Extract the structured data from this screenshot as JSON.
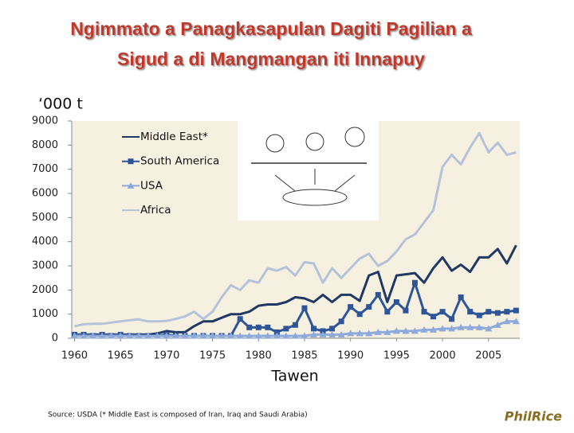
{
  "chart_data": {
    "type": "line",
    "title": [
      "Ngimmato a Panagkasapulan Dagiti Pagilian a",
      "Sigud a di Mangmangan iti Innapuy"
    ],
    "y_label": "‘000 t",
    "x_label": "Tawen",
    "source": "Source: USDA (* Middle East is composed of Iran, Iraq and Saudi Arabia)",
    "logo": "PhilRice",
    "x": [
      1960,
      1961,
      1962,
      1963,
      1964,
      1965,
      1966,
      1967,
      1968,
      1969,
      1970,
      1971,
      1972,
      1973,
      1974,
      1975,
      1976,
      1977,
      1978,
      1979,
      1980,
      1981,
      1982,
      1983,
      1984,
      1985,
      1986,
      1987,
      1988,
      1989,
      1990,
      1991,
      1992,
      1993,
      1994,
      1995,
      1996,
      1997,
      1998,
      1999,
      2000,
      2001,
      2002,
      2003,
      2004,
      2005,
      2006,
      2007,
      2008
    ],
    "xlim": [
      1959.7,
      2008.4
    ],
    "xticks": [
      1960,
      1965,
      1970,
      1975,
      1980,
      1985,
      1990,
      1995,
      2000,
      2005
    ],
    "ylim": [
      0,
      9000
    ],
    "yticks": [
      0,
      1000,
      2000,
      3000,
      4000,
      5000,
      6000,
      7000,
      8000,
      9000
    ],
    "grid": false,
    "series": [
      {
        "name": "Middle East*",
        "color": "#1f3864",
        "marker": "none",
        "values": [
          150,
          150,
          150,
          150,
          150,
          150,
          150,
          150,
          150,
          200,
          300,
          250,
          250,
          500,
          700,
          700,
          850,
          1000,
          1000,
          1100,
          1350,
          1400,
          1400,
          1500,
          1700,
          1650,
          1500,
          1800,
          1500,
          1800,
          1800,
          1550,
          2600,
          2750,
          1500,
          2600,
          2650,
          2700,
          2300,
          2900,
          3350,
          2800,
          3050,
          2750,
          3350,
          3350,
          3700,
          3100,
          3850
        ]
      },
      {
        "name": "South America",
        "color": "#2e5597",
        "marker": "square",
        "values": [
          150,
          150,
          100,
          150,
          100,
          150,
          100,
          100,
          100,
          100,
          150,
          100,
          100,
          100,
          100,
          100,
          100,
          100,
          800,
          450,
          450,
          450,
          250,
          400,
          550,
          1250,
          400,
          300,
          400,
          700,
          1300,
          1000,
          1300,
          1800,
          1100,
          1500,
          1150,
          2300,
          1100,
          900,
          1100,
          800,
          1700,
          1100,
          950,
          1100,
          1050,
          1100,
          1150
        ]
      },
      {
        "name": "USA",
        "color": "#8eaadb",
        "marker": "triangle",
        "values": [
          100,
          100,
          100,
          100,
          100,
          100,
          100,
          100,
          100,
          100,
          100,
          100,
          100,
          100,
          100,
          100,
          100,
          100,
          100,
          100,
          100,
          100,
          100,
          100,
          100,
          100,
          150,
          150,
          150,
          150,
          200,
          200,
          200,
          250,
          250,
          300,
          300,
          300,
          350,
          350,
          400,
          400,
          450,
          450,
          450,
          400,
          550,
          700,
          700
        ]
      },
      {
        "name": "Africa",
        "color": "#b4c3d9",
        "marker": "none",
        "values": [
          500,
          580,
          600,
          600,
          650,
          700,
          750,
          780,
          700,
          700,
          720,
          800,
          900,
          1100,
          800,
          1100,
          1700,
          2200,
          2000,
          2400,
          2300,
          2900,
          2800,
          2950,
          2600,
          3150,
          3100,
          2300,
          2900,
          2500,
          2900,
          3300,
          3500,
          3000,
          3200,
          3600,
          4100,
          4300,
          4800,
          5300,
          7100,
          7600,
          7200,
          7900,
          8500,
          7700,
          8100,
          7600,
          7700
        ]
      }
    ]
  }
}
